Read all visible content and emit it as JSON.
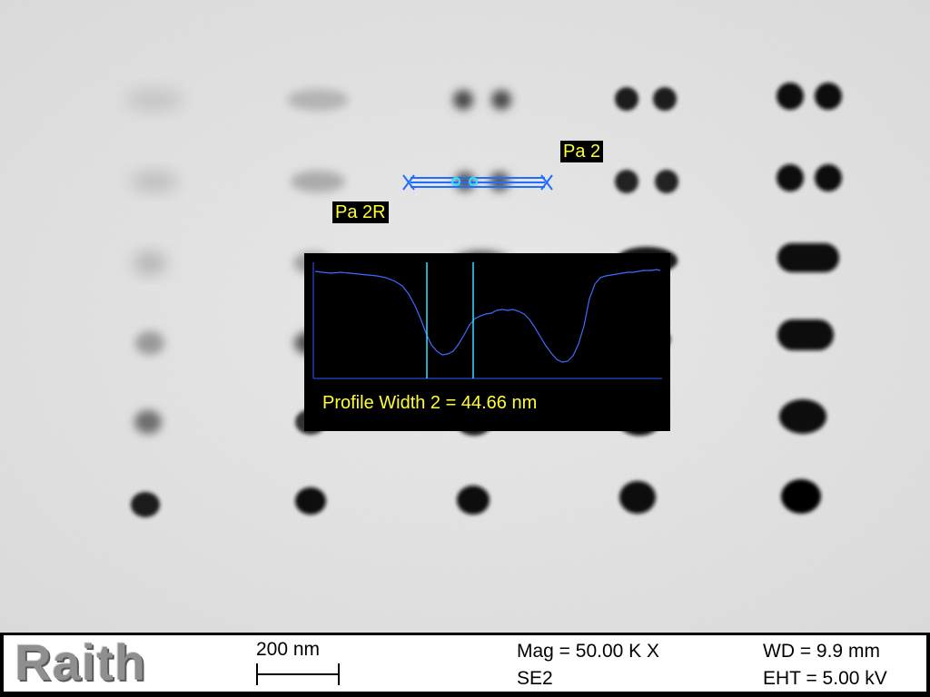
{
  "image": {
    "label_pa2": "Pa 2",
    "label_pa2r": "Pa 2R"
  },
  "profile": {
    "readout": "Profile Width 2 = 44.66 nm",
    "line_color": "#3c6cff",
    "cursor_color": "#33e0ff"
  },
  "info_bar": {
    "logo": "Raith",
    "scale_label": "200 nm",
    "magnification": "Mag =  50.00 K X",
    "detector": "SE2",
    "working_distance": "WD =  9.9 mm",
    "eht": "EHT =  5.00 kV"
  },
  "colors": {
    "label_text": "#ffff33",
    "measurement_marker": "#1e6fff"
  }
}
